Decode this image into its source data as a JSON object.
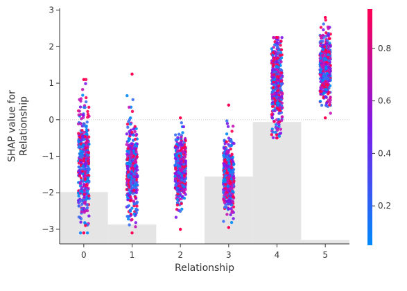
{
  "chart_data": {
    "type": "scatter",
    "xlabel": "Relationship",
    "ylabel": "SHAP value for\nRelationship",
    "categories": [
      "0",
      "1",
      "2",
      "3",
      "4",
      "5"
    ],
    "x_ticks": [
      0,
      1,
      2,
      3,
      4,
      5
    ],
    "xlim": [
      -0.5,
      5.5
    ],
    "y_ticks": [
      -3,
      -2,
      -1,
      0,
      1,
      2,
      3
    ],
    "ylim": [
      -3.4,
      3.05
    ],
    "zero_line": true,
    "histogram": {
      "description": "background distribution of feature values (relative frequency)",
      "categories": [
        0,
        1,
        2,
        3,
        4,
        5
      ],
      "relative_heights": [
        0.4,
        0.15,
        0.0,
        0.52,
        0.94,
        0.03
      ]
    },
    "series": [
      {
        "category": 0,
        "center": -1.3,
        "min": -3.1,
        "max": 1.1,
        "spread": 0.8
      },
      {
        "category": 1,
        "center": -1.4,
        "min": -3.1,
        "max": 1.25,
        "spread": 0.6
      },
      {
        "category": 2,
        "center": -1.4,
        "min": -3.0,
        "max": 0.05,
        "spread": 0.45
      },
      {
        "category": 3,
        "center": -1.5,
        "min": -2.95,
        "max": 0.4,
        "spread": 0.5
      },
      {
        "category": 4,
        "center": 1.0,
        "min": -0.5,
        "max": 2.25,
        "spread": 0.65
      },
      {
        "category": 5,
        "center": 1.4,
        "min": 0.05,
        "max": 2.8,
        "spread": 0.5
      }
    ],
    "colorbar": {
      "ticks": [
        0.2,
        0.4,
        0.6,
        0.8
      ],
      "range": [
        0.05,
        0.95
      ],
      "colors": {
        "low": "#008afb",
        "mid": "#7c1aeb",
        "high": "#ff0052"
      }
    },
    "colors": {
      "axis": "#333333",
      "histogram": "#e5e5e5",
      "zero_line": "#cccccc"
    }
  }
}
